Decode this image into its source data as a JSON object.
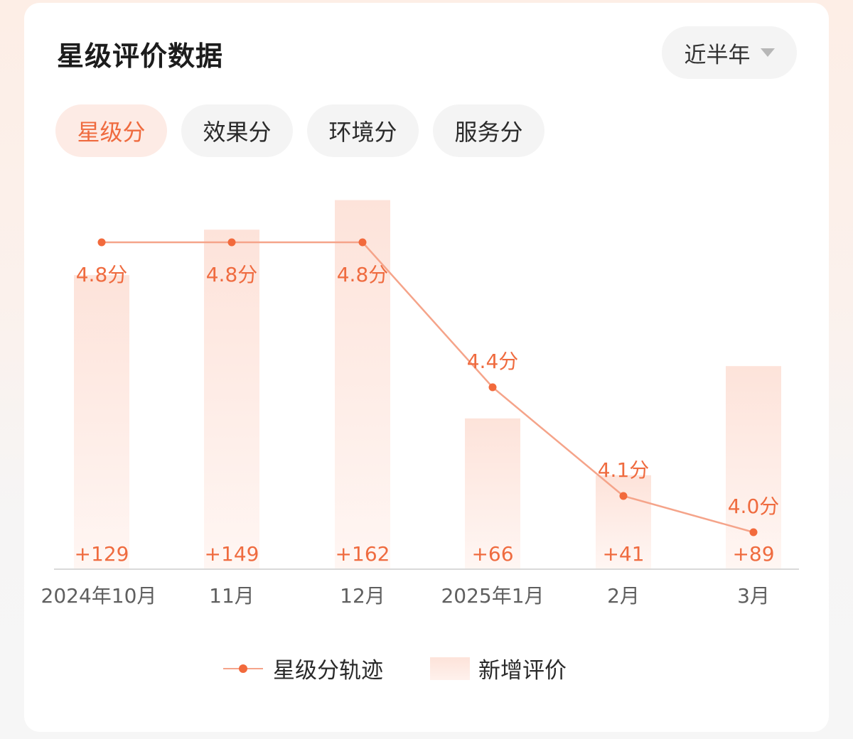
{
  "header": {
    "title": "星级评价数据",
    "period_label": "近半年",
    "period_icon": "chevron-down-icon"
  },
  "tabs": [
    {
      "label": "星级分",
      "active": true
    },
    {
      "label": "效果分",
      "active": false
    },
    {
      "label": "环境分",
      "active": false
    },
    {
      "label": "服务分",
      "active": false
    }
  ],
  "colors": {
    "accent": "#ef6b3f",
    "line": "#f5a48a",
    "bar": "#fde3da"
  },
  "chart_data": {
    "type": "bar",
    "categories": [
      "2024年10月",
      "11月",
      "12月",
      "2025年1月",
      "2月",
      "3月"
    ],
    "series": [
      {
        "name": "新增评价",
        "type": "bar",
        "values": [
          129,
          149,
          162,
          66,
          41,
          89
        ],
        "labels": [
          "+129",
          "+149",
          "+162",
          "+66",
          "+41",
          "+89"
        ]
      },
      {
        "name": "星级分轨迹",
        "type": "line",
        "values": [
          4.8,
          4.8,
          4.8,
          4.4,
          4.1,
          4.0
        ],
        "labels": [
          "4.8分",
          "4.8分",
          "4.8分",
          "4.4分",
          "4.1分",
          "4.0分"
        ]
      }
    ],
    "legend": {
      "placement": "bottom",
      "items": [
        "星级分轨迹",
        "新增评价"
      ]
    }
  }
}
